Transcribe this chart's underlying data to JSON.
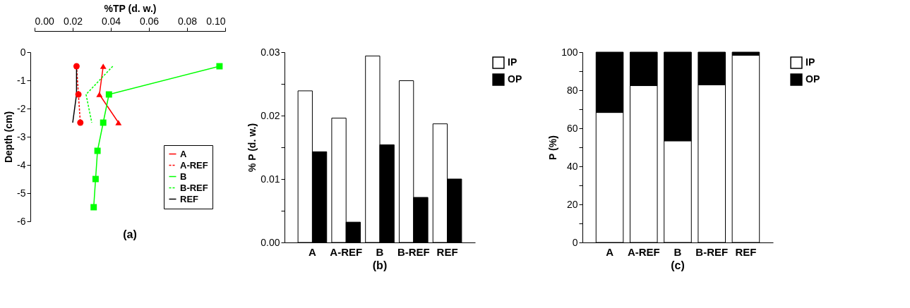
{
  "chart_data": [
    {
      "type": "line",
      "xlabel": "%TP (d. w.)",
      "ylabel": "Depth (cm)",
      "xlim": [
        0,
        0.1
      ],
      "xticks": [
        {
          "value": 0,
          "label": "0.00"
        },
        {
          "value": 0.02,
          "label": "0.02"
        },
        {
          "value": 0.04,
          "label": "0.04"
        },
        {
          "value": 0.06,
          "label": "0.06"
        },
        {
          "value": 0.08,
          "label": "0.08"
        },
        {
          "value": 0.1,
          "label": "0.10"
        }
      ],
      "ylim": [
        -6,
        0
      ],
      "yticks": [
        0,
        -1,
        -2,
        -3,
        -4,
        -5,
        -6
      ],
      "grid": false,
      "legend": "bottom right",
      "annotations": [
        "(a)"
      ],
      "series": [
        {
          "name": "A",
          "color": "#ff0000",
          "marker": "triangle",
          "line_style": "solid",
          "x": [
            0.036,
            0.034,
            0.044
          ],
          "values": [
            -0.5,
            -1.5,
            -2.5
          ]
        },
        {
          "name": "A-REF",
          "color": "#ff0000",
          "marker": "circle",
          "line_style": "dashed",
          "x": [
            0.022,
            0.023,
            0.024
          ],
          "values": [
            -0.5,
            -1.5,
            -2.5
          ]
        },
        {
          "name": "B",
          "color": "#00ff00",
          "marker": "square",
          "line_style": "solid",
          "x": [
            0.097,
            0.039,
            0.036,
            0.033,
            0.032,
            0.031
          ],
          "values": [
            -0.5,
            -1.5,
            -2.5,
            -3.5,
            -4.5,
            -5.5
          ]
        },
        {
          "name": "B-REF",
          "color": "#00ff00",
          "marker": "none",
          "line_style": "dashed",
          "x": [
            0.041,
            0.027,
            0.03
          ],
          "values": [
            -0.5,
            -1.5,
            -2.5
          ]
        },
        {
          "name": "REF",
          "color": "#000000",
          "marker": "none",
          "line_style": "solid",
          "x": [
            0.022,
            0.022,
            0.02
          ],
          "values": [
            -0.5,
            -1.5,
            -2.5
          ]
        }
      ]
    },
    {
      "type": "bar",
      "ylabel": "% P (d. w.)",
      "categories": [
        "A",
        "A-REF",
        "B",
        "B-REF",
        "REF"
      ],
      "ylim": [
        0,
        0.03
      ],
      "yticks": [
        {
          "value": 0,
          "label": "0.00"
        },
        {
          "value": 0.005,
          "label": null
        },
        {
          "value": 0.01,
          "label": "0.01"
        },
        {
          "value": 0.015,
          "label": null
        },
        {
          "value": 0.02,
          "label": "0.02"
        },
        {
          "value": 0.025,
          "label": null
        },
        {
          "value": 0.03,
          "label": "0.03"
        }
      ],
      "grid": false,
      "legend": "top right",
      "annotations": [
        "(b)"
      ],
      "series": [
        {
          "name": "IP",
          "color": "#ffffff",
          "values": [
            0.0239,
            0.0196,
            0.0294,
            0.0255,
            0.0187
          ]
        },
        {
          "name": "OP",
          "color": "#000000",
          "values": [
            0.0143,
            0.0032,
            0.0154,
            0.0071,
            0.01
          ]
        }
      ]
    },
    {
      "type": "bar",
      "stacked": true,
      "ylabel": "P (%)",
      "categories": [
        "A",
        "A-REF",
        "B",
        "B-REF",
        "REF"
      ],
      "ylim": [
        0,
        100
      ],
      "yticks": [
        0,
        {
          "value": 10,
          "label": null
        },
        20,
        {
          "value": 30,
          "label": null
        },
        40,
        {
          "value": 50,
          "label": null
        },
        60,
        {
          "value": 70,
          "label": null
        },
        80,
        {
          "value": 90,
          "label": null
        },
        100
      ],
      "grid": false,
      "legend": "top right",
      "annotations": [
        "(c)"
      ],
      "series": [
        {
          "name": "IP",
          "color": "#ffffff",
          "values": [
            68.3,
            82.4,
            53.4,
            82.9,
            98.4
          ]
        },
        {
          "name": "OP",
          "color": "#000000",
          "values": [
            31.7,
            17.6,
            46.6,
            17.1,
            1.6
          ]
        }
      ]
    }
  ]
}
